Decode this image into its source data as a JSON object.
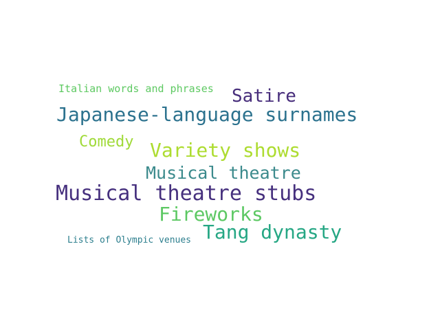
{
  "word_cloud": {
    "words": [
      {
        "text": "Italian words and phrases",
        "color": "#5ec962"
      },
      {
        "text": "Satire",
        "color": "#472d7b"
      },
      {
        "text": "Japanese-language surnames",
        "color": "#2c728e"
      },
      {
        "text": "Comedy",
        "color": "#a0da39"
      },
      {
        "text": "Variety shows",
        "color": "#addc30"
      },
      {
        "text": "Musical theatre",
        "color": "#3b8a8c"
      },
      {
        "text": "Musical theatre stubs",
        "color": "#46307e"
      },
      {
        "text": "Fireworks",
        "color": "#5cc863"
      },
      {
        "text": "Tang dynasty",
        "color": "#26a784"
      },
      {
        "text": "Lists of Olympic venues",
        "color": "#2d7f8e"
      }
    ]
  }
}
